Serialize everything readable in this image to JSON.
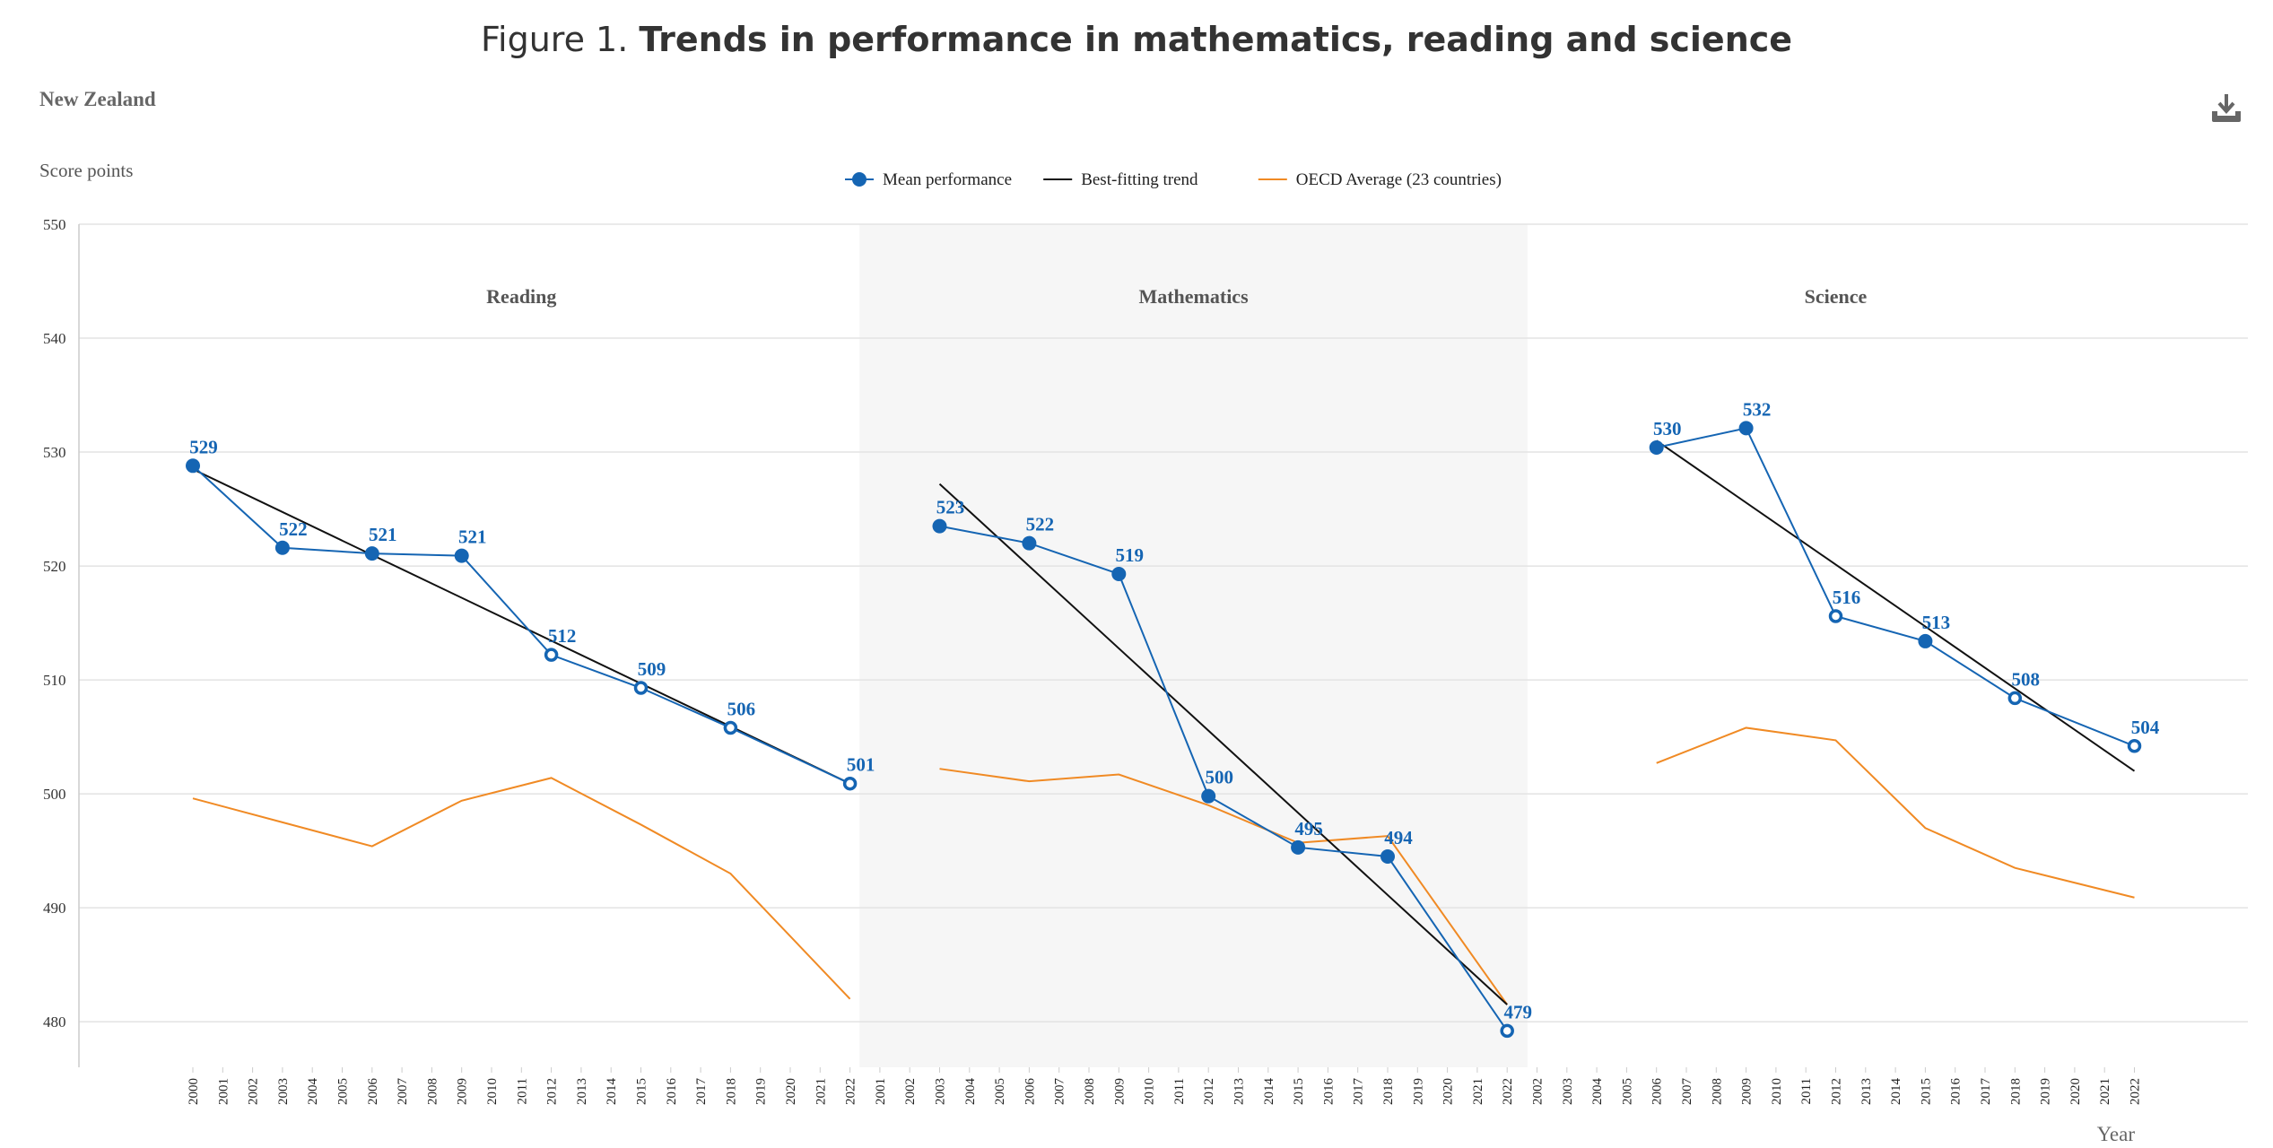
{
  "title": {
    "prefix": "Figure 1.",
    "bold": "Trends in performance in mathematics, reading and science"
  },
  "country": "New Zealand",
  "download_icon": "download-icon",
  "colors": {
    "mean": "#1565b3",
    "trend": "#111111",
    "oecd": "#f08a24",
    "panel_shade": "#f6f6f6",
    "grid": "#e3e3e3"
  },
  "chart_data": {
    "type": "line",
    "ylabel": "Score points",
    "xlabel": "Year",
    "ylim": [
      476,
      550
    ],
    "yticks": [
      480,
      490,
      500,
      510,
      520,
      530,
      540,
      550
    ],
    "legend": {
      "placement": "top-center",
      "items": [
        {
          "label": "Mean performance",
          "kind": "marker-line",
          "color": "#1565b3"
        },
        {
          "label": "Best-fitting trend",
          "kind": "line",
          "color": "#111111"
        },
        {
          "label": "OECD Average (23 countries)",
          "kind": "line",
          "color": "#f08a24"
        }
      ]
    },
    "panels": [
      {
        "name": "Reading",
        "shaded": false,
        "year_ticks": [
          "2000",
          "2001",
          "2002",
          "2003",
          "2004",
          "2005",
          "2006",
          "2007",
          "2008",
          "2009",
          "2010",
          "2011",
          "2012",
          "2013",
          "2014",
          "2015",
          "2016",
          "2017",
          "2018",
          "2019",
          "2020",
          "2021",
          "2022"
        ],
        "mean": [
          {
            "x": "2000",
            "y": 528.8,
            "label": "529",
            "filled": true
          },
          {
            "x": "2003",
            "y": 521.6,
            "label": "522",
            "filled": true
          },
          {
            "x": "2006",
            "y": 521.1,
            "label": "521",
            "filled": true
          },
          {
            "x": "2009",
            "y": 520.9,
            "label": "521",
            "filled": true
          },
          {
            "x": "2012",
            "y": 512.2,
            "label": "512",
            "filled": false
          },
          {
            "x": "2015",
            "y": 509.3,
            "label": "509",
            "filled": false
          },
          {
            "x": "2018",
            "y": 505.8,
            "label": "506",
            "filled": false
          },
          {
            "x": "2022",
            "y": 500.9,
            "label": "501",
            "filled": false
          }
        ],
        "trend": [
          {
            "x": "2000",
            "y": 528.5
          },
          {
            "x": "2022",
            "y": 500.9
          }
        ],
        "oecd": [
          {
            "x": "2000",
            "y": 499.6
          },
          {
            "x": "2003",
            "y": 497.5
          },
          {
            "x": "2006",
            "y": 495.4
          },
          {
            "x": "2009",
            "y": 499.4
          },
          {
            "x": "2012",
            "y": 501.4
          },
          {
            "x": "2015",
            "y": 497.3
          },
          {
            "x": "2018",
            "y": 493.0
          },
          {
            "x": "2022",
            "y": 482.0
          }
        ]
      },
      {
        "name": "Mathematics",
        "shaded": true,
        "year_ticks": [
          "2001",
          "2002",
          "2003",
          "2004",
          "2005",
          "2006",
          "2007",
          "2008",
          "2009",
          "2010",
          "2011",
          "2012",
          "2013",
          "2014",
          "2015",
          "2016",
          "2017",
          "2018",
          "2019",
          "2020",
          "2021",
          "2022"
        ],
        "mean": [
          {
            "x": "2003",
            "y": 523.5,
            "label": "523",
            "filled": true
          },
          {
            "x": "2006",
            "y": 522.0,
            "label": "522",
            "filled": true
          },
          {
            "x": "2009",
            "y": 519.3,
            "label": "519",
            "filled": true
          },
          {
            "x": "2012",
            "y": 499.8,
            "label": "500",
            "filled": true
          },
          {
            "x": "2015",
            "y": 495.3,
            "label": "495",
            "filled": true
          },
          {
            "x": "2018",
            "y": 494.5,
            "label": "494",
            "filled": true
          },
          {
            "x": "2022",
            "y": 479.2,
            "label": "479",
            "filled": false
          }
        ],
        "trend": [
          {
            "x": "2003",
            "y": 527.2
          },
          {
            "x": "2022",
            "y": 481.5
          }
        ],
        "oecd": [
          {
            "x": "2003",
            "y": 502.2
          },
          {
            "x": "2006",
            "y": 501.1
          },
          {
            "x": "2009",
            "y": 501.7
          },
          {
            "x": "2012",
            "y": 499.0
          },
          {
            "x": "2015",
            "y": 495.7
          },
          {
            "x": "2018",
            "y": 496.3
          },
          {
            "x": "2022",
            "y": 481.5
          }
        ]
      },
      {
        "name": "Science",
        "shaded": false,
        "year_ticks": [
          "2002",
          "2003",
          "2004",
          "2005",
          "2006",
          "2007",
          "2008",
          "2009",
          "2010",
          "2011",
          "2012",
          "2013",
          "2014",
          "2015",
          "2016",
          "2017",
          "2018",
          "2019",
          "2020",
          "2021",
          "2022"
        ],
        "mean": [
          {
            "x": "2006",
            "y": 530.4,
            "label": "530",
            "filled": true
          },
          {
            "x": "2009",
            "y": 532.1,
            "label": "532",
            "filled": true
          },
          {
            "x": "2012",
            "y": 515.6,
            "label": "516",
            "filled": false
          },
          {
            "x": "2015",
            "y": 513.4,
            "label": "513",
            "filled": true
          },
          {
            "x": "2018",
            "y": 508.4,
            "label": "508",
            "filled": false
          },
          {
            "x": "2022",
            "y": 504.2,
            "label": "504",
            "filled": false
          }
        ],
        "trend": [
          {
            "x": "2006",
            "y": 531.0
          },
          {
            "x": "2022",
            "y": 502.0
          }
        ],
        "oecd": [
          {
            "x": "2006",
            "y": 502.7
          },
          {
            "x": "2009",
            "y": 505.8
          },
          {
            "x": "2012",
            "y": 504.7
          },
          {
            "x": "2015",
            "y": 497.0
          },
          {
            "x": "2018",
            "y": 493.5
          },
          {
            "x": "2022",
            "y": 490.9
          }
        ]
      }
    ]
  }
}
